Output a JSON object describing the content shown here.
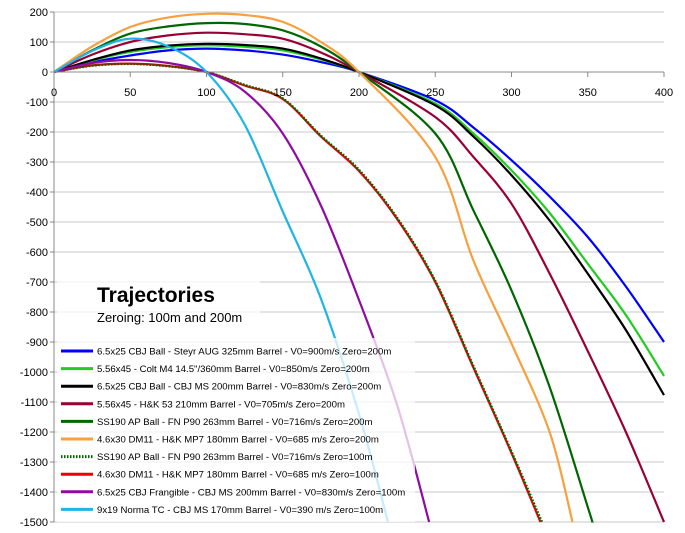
{
  "chart_data": {
    "type": "line",
    "title": "Trajectories",
    "subtitle": "Zeroing: 100m and 200m",
    "xlabel": "",
    "ylabel": "",
    "xlim": [
      0,
      400
    ],
    "ylim": [
      -1500,
      200
    ],
    "xticks": [
      0,
      50,
      100,
      150,
      200,
      250,
      300,
      350,
      400
    ],
    "yticks": [
      200,
      100,
      0,
      -100,
      -200,
      -300,
      -400,
      -500,
      -600,
      -700,
      -800,
      -900,
      -1000,
      -1100,
      -1200,
      -1300,
      -1400,
      -1500
    ],
    "grid": "horizontal",
    "legend_placement": "bottom-left",
    "series": [
      {
        "name": "6.5x25 CBJ Ball - Steyr AUG 325mm Barrel - V0=900m/s Zero=200m",
        "color": "#0000ff",
        "style": "solid",
        "x": [
          0,
          25,
          50,
          75,
          100,
          125,
          150,
          175,
          200,
          250,
          275,
          300,
          325,
          350,
          375,
          400
        ],
        "y": [
          0,
          32,
          55,
          72,
          78,
          72,
          58,
          33,
          0,
          -94,
          -185,
          -294,
          -415,
          -550,
          -715,
          -900
        ]
      },
      {
        "name": "5.56x45 - Colt M4 14.5\"/360mm Barrel - V0=850m/s Zero=200m",
        "color": "#22cc22",
        "style": "solid",
        "x": [
          0,
          25,
          50,
          75,
          100,
          125,
          150,
          175,
          200,
          250,
          275,
          300,
          325,
          350,
          375,
          400
        ],
        "y": [
          0,
          38,
          67,
          83,
          89,
          84,
          72,
          42,
          0,
          -105,
          -205,
          -328,
          -470,
          -639,
          -810,
          -1013
        ]
      },
      {
        "name": "6.5x25 CBJ Ball - CBJ MS 200mm Barrel - V0=830m/s Zero=200m",
        "color": "#000000",
        "style": "solid",
        "x": [
          0,
          25,
          50,
          75,
          100,
          125,
          150,
          175,
          200,
          250,
          275,
          300,
          325,
          350,
          375,
          400
        ],
        "y": [
          0,
          40,
          72,
          88,
          94,
          90,
          78,
          45,
          0,
          -111,
          -215,
          -344,
          -495,
          -672,
          -860,
          -1077
        ]
      },
      {
        "name": "5.56x45 - H&K 53 210mm Barrel - V0=705m/s Zero=200m",
        "color": "#990033",
        "style": "solid",
        "x": [
          0,
          25,
          50,
          75,
          100,
          125,
          150,
          175,
          200,
          250,
          275,
          300,
          325,
          350,
          375,
          400
        ],
        "y": [
          0,
          58,
          100,
          122,
          131,
          126,
          111,
          65,
          0,
          -150,
          -283,
          -439,
          -672,
          -930,
          -1200,
          -1500
        ]
      },
      {
        "name": "SS190 AP Ball - FN P90 263mm Barrel - V0=716m/s Zero=200m",
        "color": "#006600",
        "style": "solid",
        "x": [
          0,
          25,
          50,
          75,
          100,
          125,
          150,
          175,
          200,
          250,
          275,
          300,
          325,
          350,
          353
        ],
        "y": [
          0,
          72,
          128,
          152,
          163,
          160,
          139,
          85,
          0,
          -205,
          -461,
          -728,
          -1050,
          -1450,
          -1500
        ]
      },
      {
        "name": "4.6x30 DM11 - H&K MP7 180mm Barrel - V0=685 m/s Zero=200m",
        "color": "#f7a040",
        "style": "solid",
        "x": [
          0,
          25,
          50,
          75,
          100,
          125,
          150,
          175,
          200,
          250,
          275,
          300,
          325,
          340
        ],
        "y": [
          0,
          85,
          150,
          182,
          194,
          190,
          167,
          100,
          0,
          -283,
          -628,
          -905,
          -1200,
          -1500
        ]
      },
      {
        "name": "SS190 AP Ball - FN P90 263mm Barrel - V0=716m/s Zero=100m",
        "color": "#006600",
        "style": "dotted",
        "x": [
          0,
          25,
          50,
          75,
          100,
          125,
          150,
          175,
          200,
          225,
          250,
          275,
          300,
          320
        ],
        "y": [
          0,
          21,
          27,
          19,
          0,
          -43,
          -88,
          -212,
          -326,
          -486,
          -696,
          -980,
          -1265,
          -1500
        ]
      },
      {
        "name": "4.6x30 DM11 - H&K MP7 180mm Barrel - V0=685 m/s Zero=100m",
        "color": "#ee0000",
        "style": "solid",
        "x": [
          0,
          25,
          50,
          75,
          100,
          125,
          150,
          175,
          200,
          225,
          250,
          275,
          300,
          319
        ],
        "y": [
          0,
          22,
          28,
          20,
          0,
          -45,
          -90,
          -215,
          -330,
          -490,
          -700,
          -985,
          -1270,
          -1500
        ]
      },
      {
        "name": "6.5x25 CBJ Frangible - CBJ MS 200mm Barrel - V0=830m/s Zero=100m",
        "color": "#8e0ca0",
        "style": "solid",
        "x": [
          0,
          25,
          50,
          75,
          100,
          125,
          150,
          175,
          200,
          225,
          246
        ],
        "y": [
          0,
          30,
          40,
          30,
          0,
          -65,
          -205,
          -445,
          -760,
          -1110,
          -1500
        ]
      },
      {
        "name": "9x19 Norma TC - CBJ MS 170mm Barrel - V0=390 m/s Zero=100m",
        "color": "#1eb4e6",
        "style": "solid",
        "x": [
          0,
          25,
          50,
          75,
          100,
          125,
          150,
          175,
          200,
          219
        ],
        "y": [
          0,
          70,
          111,
          85,
          0,
          -175,
          -465,
          -755,
          -1140,
          -1500
        ]
      }
    ]
  }
}
